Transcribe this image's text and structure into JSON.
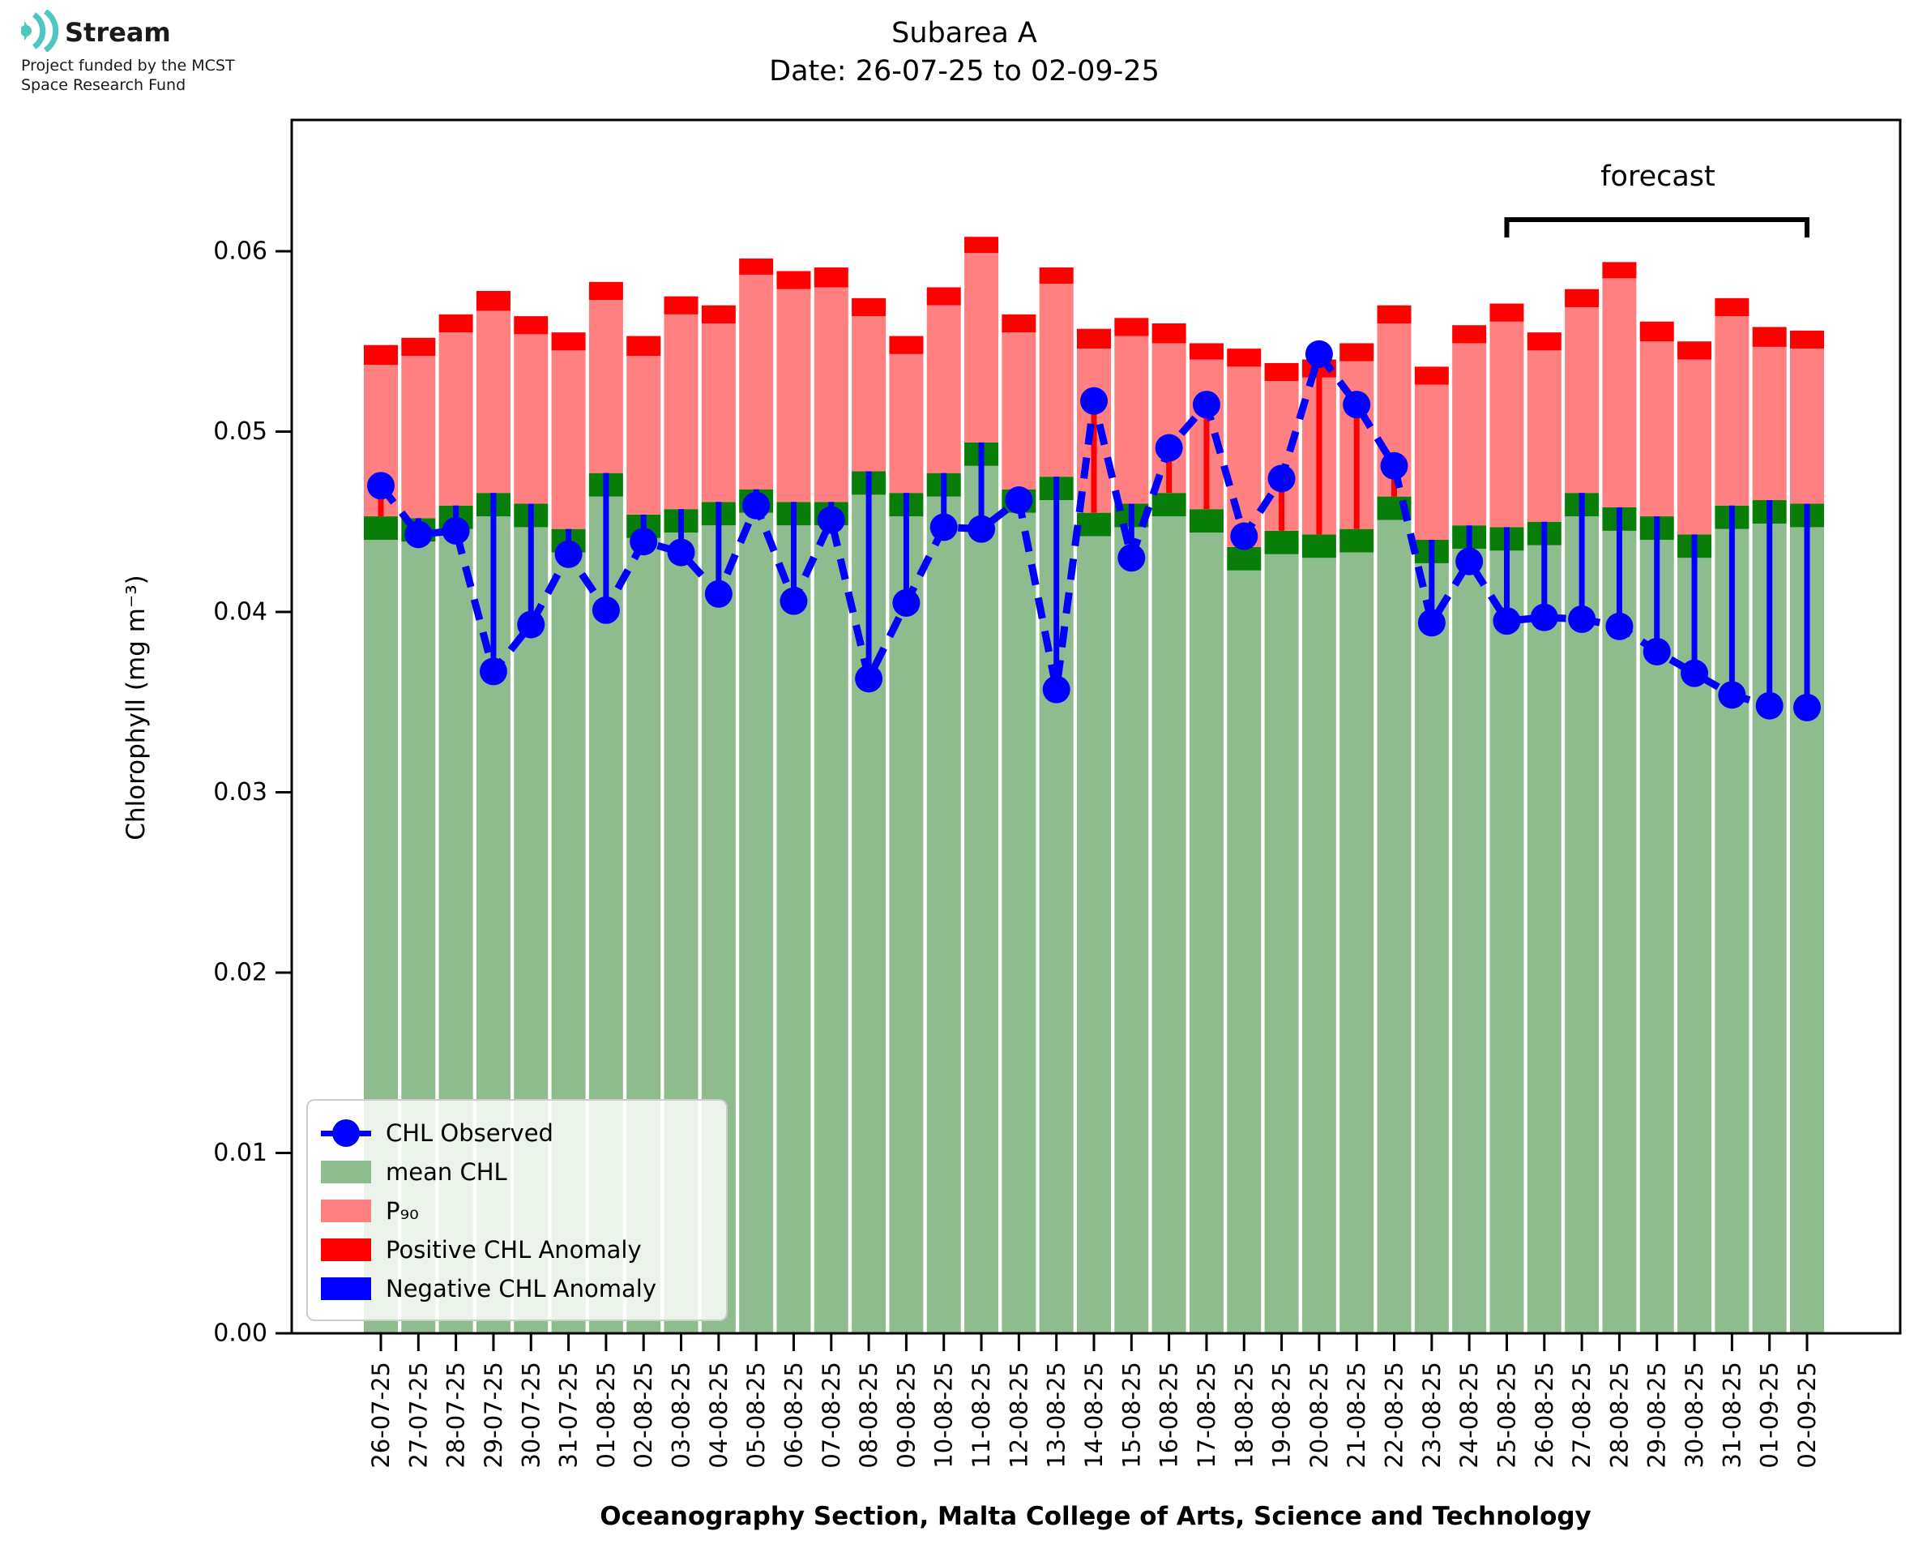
{
  "logo": {
    "name": "Stream",
    "subtitle_line1": "Project funded by the MCST",
    "subtitle_line2": "Space Research Fund",
    "icon": "ripple-waves-icon",
    "icon_color": "#4fc7be"
  },
  "title": {
    "line1": "Subarea A",
    "line2": "Date: 26-07-25 to 02-09-25"
  },
  "forecast_label": "forecast",
  "axes": {
    "ylabel": "Chlorophyll (mg m⁻³)",
    "xlabel": "Oceanography Section, Malta College of Arts, Science and Technology",
    "y_ticks": [
      "0.00",
      "0.01",
      "0.02",
      "0.03",
      "0.04",
      "0.05",
      "0.06"
    ],
    "ylim": [
      0,
      0.0673
    ]
  },
  "legend": {
    "observed": "CHL Observed",
    "mean": "mean CHL",
    "p90": "P₉₀",
    "pos_anomaly": "Positive CHL Anomaly",
    "neg_anomaly": "Negative CHL Anomaly"
  },
  "colors": {
    "mean_bar": "#8fbc8f",
    "mean_band": "#087d08",
    "p90_bar": "#ff8080",
    "pos_anomaly": "#ff0000",
    "neg_anomaly": "#0000ff",
    "observed": "#0000ff"
  },
  "chart_data": {
    "type": "bar",
    "title": "Subarea A  Date: 26-07-25 to 02-09-25",
    "xlabel": "Oceanography Section, Malta College of Arts, Science and Technology",
    "ylabel": "Chlorophyll (mg m-3)",
    "ylim": [
      0,
      0.0673
    ],
    "grid": false,
    "legend_position": "lower left",
    "forecast_start_date": "25-08-25",
    "forecast_end_date": "02-09-25",
    "categories": [
      "26-07-25",
      "27-07-25",
      "28-07-25",
      "29-07-25",
      "30-07-25",
      "31-07-25",
      "01-08-25",
      "02-08-25",
      "03-08-25",
      "04-08-25",
      "05-08-25",
      "06-08-25",
      "07-08-25",
      "08-08-25",
      "09-08-25",
      "10-08-25",
      "11-08-25",
      "12-08-25",
      "13-08-25",
      "14-08-25",
      "15-08-25",
      "16-08-25",
      "17-08-25",
      "18-08-25",
      "19-08-25",
      "20-08-25",
      "21-08-25",
      "22-08-25",
      "23-08-25",
      "24-08-25",
      "25-08-25",
      "26-08-25",
      "27-08-25",
      "28-08-25",
      "29-08-25",
      "30-08-25",
      "31-08-25",
      "01-09-25",
      "02-09-25"
    ],
    "series": [
      {
        "name": "mean CHL",
        "values": [
          0.0453,
          0.0452,
          0.0459,
          0.0466,
          0.046,
          0.0446,
          0.0477,
          0.0454,
          0.0457,
          0.0461,
          0.0468,
          0.0461,
          0.0461,
          0.0478,
          0.0466,
          0.0477,
          0.0494,
          0.0468,
          0.0475,
          0.0455,
          0.046,
          0.0466,
          0.0457,
          0.0436,
          0.0445,
          0.0443,
          0.0446,
          0.0464,
          0.044,
          0.0448,
          0.0447,
          0.045,
          0.0466,
          0.0458,
          0.0453,
          0.0443,
          0.0459,
          0.0462,
          0.046
        ]
      },
      {
        "name": "P90",
        "values": [
          0.0537,
          0.0542,
          0.0555,
          0.0567,
          0.0554,
          0.0545,
          0.0573,
          0.0542,
          0.0565,
          0.056,
          0.0587,
          0.0579,
          0.058,
          0.0564,
          0.0543,
          0.057,
          0.0599,
          0.0555,
          0.0582,
          0.0546,
          0.0553,
          0.0549,
          0.054,
          0.0536,
          0.0528,
          0.053,
          0.0539,
          0.056,
          0.0526,
          0.0549,
          0.0561,
          0.0545,
          0.0569,
          0.0585,
          0.055,
          0.054,
          0.0564,
          0.0547,
          0.0546
        ]
      },
      {
        "name": "Positive CHL Anomaly bar top",
        "values": [
          0.0548,
          0.0552,
          0.0565,
          0.0578,
          0.0564,
          0.0555,
          0.0583,
          0.0553,
          0.0575,
          0.057,
          0.0596,
          0.0589,
          0.0591,
          0.0574,
          0.0553,
          0.058,
          0.0608,
          0.0565,
          0.0591,
          0.0557,
          0.0563,
          0.056,
          0.0549,
          0.0546,
          0.0538,
          0.054,
          0.0549,
          0.057,
          0.0536,
          0.0559,
          0.0571,
          0.0555,
          0.0579,
          0.0594,
          0.0561,
          0.055,
          0.0574,
          0.0558,
          0.0556
        ]
      },
      {
        "name": "CHL Observed",
        "values": [
          0.047,
          0.0443,
          0.0445,
          0.0367,
          0.0393,
          0.0432,
          0.0401,
          0.0439,
          0.0433,
          0.041,
          0.0459,
          0.0406,
          0.0451,
          0.0363,
          0.0405,
          0.0447,
          0.0446,
          0.0462,
          0.0357,
          0.0517,
          0.043,
          0.0491,
          0.0515,
          0.0442,
          0.0474,
          0.0543,
          0.0515,
          0.0481,
          0.0394,
          0.0428,
          0.0395,
          0.0397,
          0.0396,
          0.0392,
          0.0378,
          0.0366,
          0.0354,
          0.0348,
          0.0347
        ]
      }
    ],
    "mean_band_thickness": 0.0013
  }
}
